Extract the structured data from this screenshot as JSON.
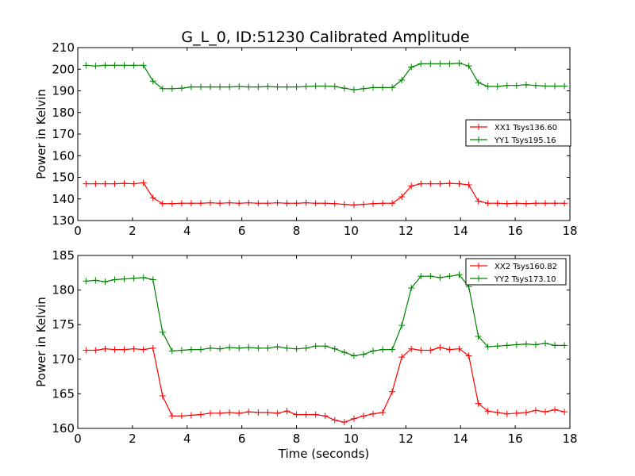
{
  "title": "G_L_0, ID:51230 Calibrated Amplitude",
  "chart_data": [
    {
      "type": "line",
      "ylabel": "Power in Kelvin",
      "xlabel": "",
      "xlim": [
        0,
        18
      ],
      "ylim": [
        130,
        210
      ],
      "xticks": [
        0,
        2,
        4,
        6,
        8,
        10,
        12,
        14,
        16,
        18
      ],
      "yticks": [
        130,
        140,
        150,
        160,
        170,
        180,
        190,
        200,
        210
      ],
      "legend_position": "center-right",
      "x": [
        0.3,
        0.65,
        1.0,
        1.35,
        1.7,
        2.05,
        2.4,
        2.75,
        3.1,
        3.45,
        3.8,
        4.15,
        4.5,
        4.85,
        5.2,
        5.55,
        5.9,
        6.25,
        6.6,
        6.95,
        7.3,
        7.65,
        8.0,
        8.35,
        8.7,
        9.05,
        9.4,
        9.75,
        10.1,
        10.45,
        10.8,
        11.15,
        11.5,
        11.85,
        12.2,
        12.55,
        12.9,
        13.25,
        13.6,
        13.95,
        14.3,
        14.65,
        15.0,
        15.35,
        15.7,
        16.05,
        16.4,
        16.75,
        17.1,
        17.45,
        17.8
      ],
      "series": [
        {
          "name": "XX1 Tsys136.60",
          "color": "#ff0000",
          "values": [
            147.0,
            147.0,
            147.0,
            147.0,
            147.2,
            147.0,
            147.5,
            140.5,
            137.8,
            137.8,
            138.0,
            138.0,
            138.0,
            138.2,
            138.0,
            138.2,
            138.0,
            138.2,
            138.0,
            138.0,
            138.2,
            138.0,
            138.0,
            138.2,
            138.0,
            138.0,
            137.8,
            137.5,
            137.2,
            137.5,
            137.8,
            138.0,
            138.0,
            141.0,
            146.0,
            147.0,
            147.0,
            147.0,
            147.2,
            147.0,
            146.5,
            139.0,
            138.0,
            138.0,
            137.8,
            138.0,
            137.8,
            138.0,
            138.0,
            138.0,
            138.0
          ]
        },
        {
          "name": "YY1 Tsys195.16",
          "color": "#008000",
          "values": [
            201.8,
            201.5,
            201.8,
            201.8,
            201.8,
            201.8,
            201.8,
            194.5,
            191.0,
            191.0,
            191.2,
            191.8,
            191.8,
            191.8,
            191.8,
            191.8,
            192.0,
            191.8,
            191.8,
            192.0,
            191.8,
            191.8,
            191.8,
            192.0,
            192.2,
            192.2,
            192.0,
            191.2,
            190.5,
            191.0,
            191.5,
            191.5,
            191.5,
            195.0,
            201.0,
            202.5,
            202.5,
            202.5,
            202.5,
            202.8,
            201.5,
            193.8,
            192.0,
            192.0,
            192.5,
            192.5,
            192.8,
            192.5,
            192.2,
            192.2,
            192.2
          ]
        }
      ]
    },
    {
      "type": "line",
      "ylabel": "Power in Kelvin",
      "xlabel": "Time (seconds)",
      "xlim": [
        0,
        18
      ],
      "ylim": [
        160,
        185
      ],
      "xticks": [
        0,
        2,
        4,
        6,
        8,
        10,
        12,
        14,
        16,
        18
      ],
      "yticks": [
        160,
        165,
        170,
        175,
        180,
        185
      ],
      "legend_position": "top-right",
      "x": [
        0.3,
        0.65,
        1.0,
        1.35,
        1.7,
        2.05,
        2.4,
        2.75,
        3.1,
        3.45,
        3.8,
        4.15,
        4.5,
        4.85,
        5.2,
        5.55,
        5.9,
        6.25,
        6.6,
        6.95,
        7.3,
        7.65,
        8.0,
        8.35,
        8.7,
        9.05,
        9.4,
        9.75,
        10.1,
        10.45,
        10.8,
        11.15,
        11.5,
        11.85,
        12.2,
        12.55,
        12.9,
        13.25,
        13.6,
        13.95,
        14.3,
        14.65,
        15.0,
        15.35,
        15.7,
        16.05,
        16.4,
        16.75,
        17.1,
        17.45,
        17.8
      ],
      "series": [
        {
          "name": "XX2 Tsys160.82",
          "color": "#ff0000",
          "values": [
            171.3,
            171.3,
            171.5,
            171.4,
            171.4,
            171.5,
            171.4,
            171.6,
            164.7,
            161.8,
            161.8,
            161.9,
            162.0,
            162.2,
            162.2,
            162.3,
            162.2,
            162.4,
            162.3,
            162.3,
            162.2,
            162.5,
            162.0,
            162.0,
            162.0,
            161.8,
            161.2,
            160.9,
            161.4,
            161.8,
            162.1,
            162.3,
            165.3,
            170.3,
            171.5,
            171.3,
            171.3,
            171.7,
            171.4,
            171.5,
            170.5,
            163.6,
            162.5,
            162.3,
            162.1,
            162.2,
            162.3,
            162.6,
            162.4,
            162.7,
            162.4
          ]
        },
        {
          "name": "YY2 Tsys173.10",
          "color": "#008000",
          "values": [
            181.3,
            181.4,
            181.2,
            181.5,
            181.6,
            181.7,
            181.8,
            181.5,
            173.9,
            171.2,
            171.3,
            171.4,
            171.4,
            171.6,
            171.5,
            171.7,
            171.6,
            171.7,
            171.6,
            171.6,
            171.8,
            171.6,
            171.5,
            171.6,
            171.9,
            171.9,
            171.5,
            171.0,
            170.5,
            170.7,
            171.2,
            171.4,
            171.4,
            174.9,
            180.3,
            182.0,
            182.0,
            181.8,
            182.0,
            182.2,
            180.5,
            173.3,
            171.8,
            171.9,
            172.0,
            172.1,
            172.2,
            172.1,
            172.3,
            172.0,
            172.0
          ]
        }
      ]
    }
  ]
}
